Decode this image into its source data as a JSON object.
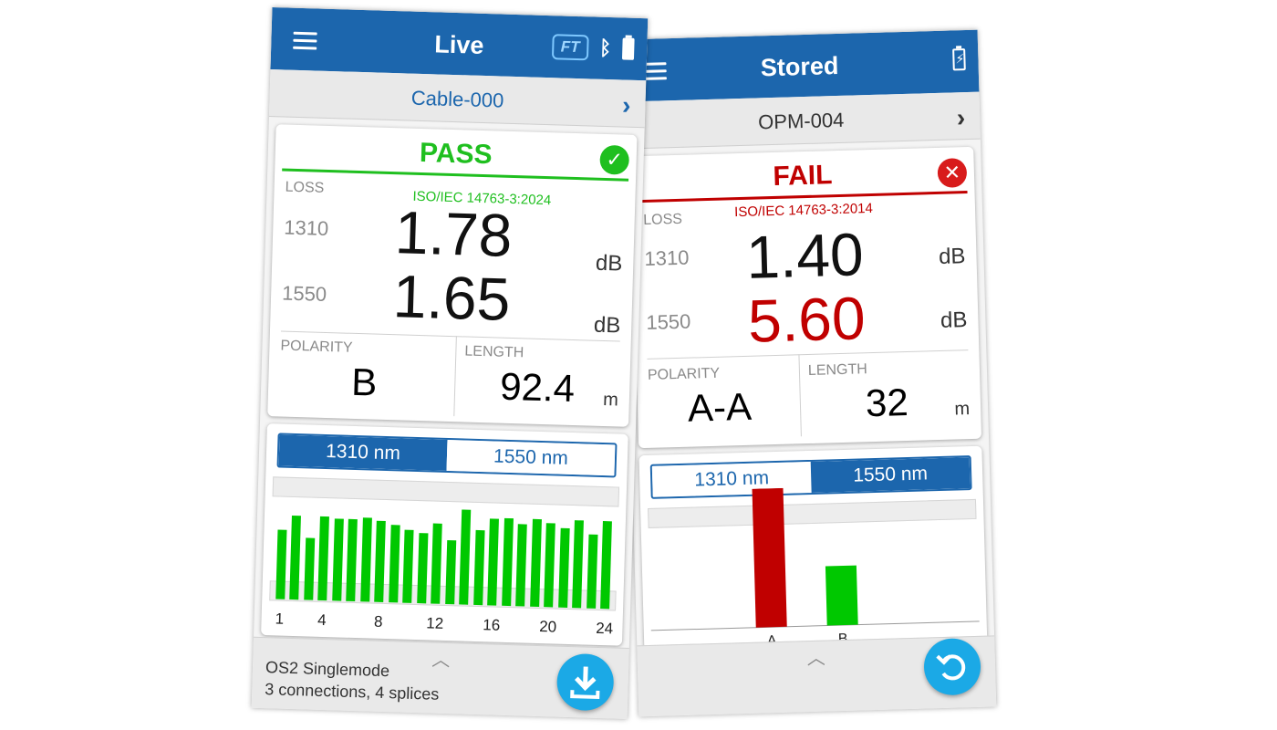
{
  "live": {
    "title": "Live",
    "header_icons": {
      "ft": "FT",
      "bluetooth": "bluetooth-icon",
      "battery": "battery-icon"
    },
    "cable_name": "Cable-000",
    "status": "PASS",
    "status_color": "#1fbf1f",
    "standard": "ISO/IEC 14763-3:2024",
    "loss_label": "LOSS",
    "readings": [
      {
        "wavelength": "1310",
        "value": "1.78",
        "unit": "dB"
      },
      {
        "wavelength": "1550",
        "value": "1.65",
        "unit": "dB"
      }
    ],
    "polarity_label": "POLARITY",
    "polarity_value": "B",
    "length_label": "LENGTH",
    "length_value": "92.4",
    "length_unit": "m",
    "tabs": [
      "1310 nm",
      "1550 nm"
    ],
    "active_tab": "1310 nm",
    "footer_caret": "^",
    "fiber_type": "OS2 Singlemode",
    "fiber_detail": "3 connections, 4 splices",
    "fab_icon": "download-icon",
    "chart_data": {
      "type": "bar",
      "categories": [
        "1",
        "2",
        "3",
        "4",
        "5",
        "6",
        "7",
        "8",
        "9",
        "10",
        "11",
        "12",
        "13",
        "14",
        "15",
        "16",
        "17",
        "18",
        "19",
        "20",
        "21",
        "22",
        "23",
        "24"
      ],
      "values": [
        76,
        92,
        68,
        92,
        90,
        90,
        92,
        89,
        85,
        80,
        77,
        88,
        70,
        104,
        82,
        95,
        96,
        90,
        96,
        92,
        87,
        96,
        81,
        96
      ],
      "x_tick_labels": [
        "1",
        "4",
        "8",
        "12",
        "16",
        "20",
        "24"
      ],
      "bar_color": "#00c800",
      "ylim": [
        0,
        112
      ]
    }
  },
  "stored": {
    "title": "Stored",
    "header_icons": {
      "battery": "battery-charging-icon"
    },
    "cable_name": "OPM-004",
    "status": "FAIL",
    "status_color": "#c00000",
    "standard": "ISO/IEC 14763-3:2014",
    "loss_label": "LOSS",
    "readings": [
      {
        "wavelength": "1310",
        "value": "1.40",
        "unit": "dB",
        "value_color": "#111111"
      },
      {
        "wavelength": "1550",
        "value": "5.60",
        "unit": "dB",
        "value_color": "#c00000"
      }
    ],
    "polarity_label": "POLARITY",
    "polarity_value": "A-A",
    "length_label": "LENGTH",
    "length_value": "32",
    "length_unit": "m",
    "tabs": [
      "1310 nm",
      "1550 nm"
    ],
    "active_tab": "1550 nm",
    "footer_caret": "^",
    "fab_icon": "undo-icon",
    "chart_data": {
      "type": "bar",
      "categories": [
        "A",
        "B"
      ],
      "values": [
        152,
        65
      ],
      "colors": [
        "#c00000",
        "#00c800"
      ],
      "ylim": [
        0,
        152
      ]
    }
  }
}
